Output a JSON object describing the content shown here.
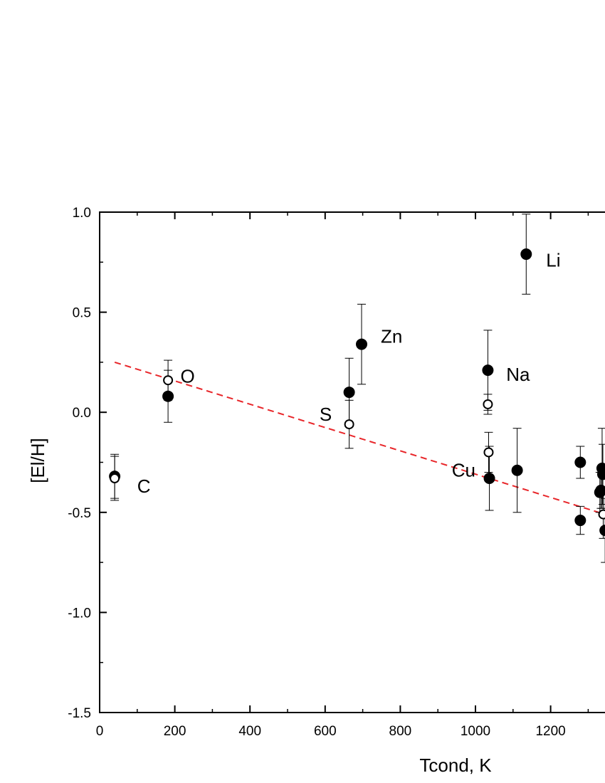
{
  "chart_data": {
    "type": "scatter",
    "xlabel": "Tcond,   K",
    "ylabel": "[El/H]",
    "xlim": [
      0,
      1350
    ],
    "ylim": [
      -1.5,
      1.0
    ],
    "x_ticks": [
      0,
      200,
      400,
      600,
      800,
      1000,
      1200
    ],
    "y_ticks": [
      1.0,
      0.5,
      0.0,
      -0.5,
      -1.0,
      -1.5
    ],
    "y_tick_labels": [
      "1.0",
      "0.5",
      "0.0",
      "-0.5",
      "-1.0",
      "-1.5"
    ],
    "trend_line": {
      "style": "dashed",
      "color": "#e8262a",
      "x": [
        40,
        1345
      ],
      "y": [
        0.25,
        -0.51
      ]
    },
    "filled_points": [
      {
        "x": 40,
        "y": -0.32,
        "err": 0.11
      },
      {
        "x": 182,
        "y": 0.08,
        "err": 0.13
      },
      {
        "x": 664,
        "y": 0.1,
        "err": 0.17
      },
      {
        "x": 697,
        "y": 0.34,
        "err": 0.2
      },
      {
        "x": 1033,
        "y": 0.21,
        "err": 0.2
      },
      {
        "x": 1037,
        "y": -0.33,
        "err": 0.16
      },
      {
        "x": 1135,
        "y": 0.79,
        "err": 0.2
      },
      {
        "x": 1111,
        "y": -0.29,
        "err": 0.21
      },
      {
        "x": 1279,
        "y": -0.25,
        "err": 0.08
      },
      {
        "x": 1279,
        "y": -0.54,
        "err": 0.07
      },
      {
        "x": 1331,
        "y": -0.4,
        "err": 0.1
      },
      {
        "x": 1334,
        "y": -0.39,
        "err": 0.09
      },
      {
        "x": 1337,
        "y": -0.28,
        "err": 0.2
      },
      {
        "x": 1339,
        "y": -0.31,
        "err": 0.15
      },
      {
        "x": 1345,
        "y": -0.59,
        "err": 0.16
      }
    ],
    "open_points": [
      {
        "x": 40,
        "y": -0.33,
        "err": 0.11
      },
      {
        "x": 182,
        "y": 0.16,
        "err": 0.1
      },
      {
        "x": 664,
        "y": -0.06,
        "err": 0.12
      },
      {
        "x": 1033,
        "y": 0.04,
        "err": 0.05
      },
      {
        "x": 1035,
        "y": -0.2,
        "err": 0.1
      },
      {
        "x": 1340,
        "y": -0.51,
        "err": 0.12
      }
    ],
    "annotations": [
      {
        "text": "C",
        "x": 100,
        "y": -0.37
      },
      {
        "text": "O",
        "x": 215,
        "y": 0.18
      },
      {
        "text": "S",
        "x": 585,
        "y": -0.01
      },
      {
        "text": "Zn",
        "x": 748,
        "y": 0.38
      },
      {
        "text": "Na",
        "x": 1082,
        "y": 0.19
      },
      {
        "text": "Cu",
        "x": 937,
        "y": -0.29
      },
      {
        "text": "Li",
        "x": 1188,
        "y": 0.76
      }
    ]
  }
}
